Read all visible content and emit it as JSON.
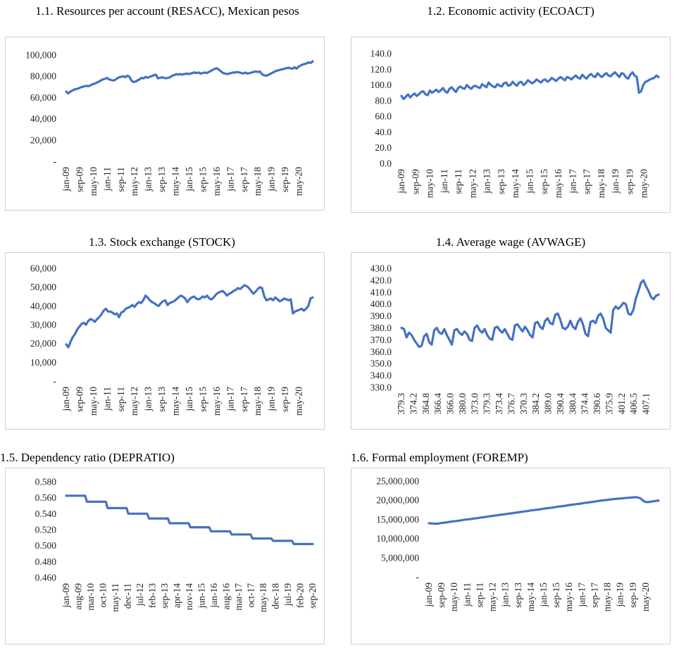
{
  "chart_data": [
    {
      "id": "c1",
      "type": "line",
      "title": "1.1. Resources per account (RESACC), Mexican pesos",
      "yticks": [
        "100,000",
        "80,000",
        "60,000",
        "40,000",
        "20,000",
        "-"
      ],
      "ylim": [
        0,
        100000
      ],
      "xticks": [
        "jan-09",
        "sep-09",
        "may-10",
        "jan-11",
        "sep-11",
        "may-12",
        "jan-13",
        "sep-13",
        "may-14",
        "jan-15",
        "sep-15",
        "may-16",
        "jan-17",
        "sep-17",
        "may-18",
        "jan-19",
        "sep-19",
        "may-20"
      ],
      "series": [
        {
          "name": "RESACC",
          "color": "#4472C4",
          "values": [
            65500,
            63800,
            65500,
            66500,
            67500,
            68000,
            68500,
            69500,
            70000,
            70500,
            71000,
            70500,
            71500,
            72500,
            73000,
            74000,
            75000,
            76000,
            77000,
            77500,
            78500,
            77000,
            76500,
            76000,
            76500,
            78000,
            79000,
            79500,
            80000,
            79000,
            80500,
            79500,
            76000,
            74500,
            75000,
            76000,
            77000,
            78500,
            78000,
            79500,
            78500,
            79500,
            80000,
            81000,
            81500,
            78000,
            78500,
            79000,
            78500,
            78000,
            78500,
            79000,
            80500,
            81000,
            82000,
            81500,
            82000,
            81500,
            82000,
            82500,
            82000,
            82500,
            83000,
            83500,
            83000,
            83500,
            82500,
            83000,
            83500,
            83000,
            84000,
            85000,
            86000,
            87000,
            87500,
            86000,
            84500,
            83000,
            82500,
            82000,
            82500,
            83000,
            83500,
            83500,
            84000,
            83500,
            83000,
            82500,
            83500,
            82500,
            83000,
            83500,
            84000,
            84500,
            84000,
            84500,
            82000,
            81000,
            80500,
            81000,
            82000,
            83000,
            84000,
            85000,
            85500,
            86000,
            86500,
            87000,
            87500,
            88000,
            87500,
            87000,
            88500,
            87000,
            89000,
            90000,
            91000,
            91500,
            92000,
            93000,
            92500,
            94000
          ]
        }
      ]
    },
    {
      "id": "c2",
      "type": "line",
      "title": "1.2. Economic activity (ECOACT)",
      "yticks": [
        "140.0",
        "120.0",
        "100.0",
        "80.0",
        "60.0",
        "40.0",
        "20.0",
        "0.0"
      ],
      "ylim": [
        0,
        140
      ],
      "xticks": [
        "jan-09",
        "sep-09",
        "may-10",
        "jan-11",
        "sep-11",
        "may-12",
        "jan-13",
        "sep-13",
        "may-14",
        "jan-15",
        "sep-15",
        "may-16",
        "jan-17",
        "sep-17",
        "may-18",
        "jan-19",
        "sep-19",
        "may-20"
      ],
      "series": [
        {
          "name": "ECOACT",
          "color": "#4472C4",
          "values": [
            86,
            82,
            85,
            88,
            84,
            87,
            89,
            86,
            88,
            91,
            92,
            88,
            87,
            93,
            90,
            92,
            94,
            91,
            93,
            96,
            92,
            90,
            95,
            97,
            94,
            91,
            96,
            98,
            96,
            95,
            100,
            97,
            95,
            98,
            99,
            97,
            96,
            101,
            99,
            97,
            103,
            100,
            98,
            97,
            101,
            99,
            98,
            102,
            103,
            99,
            100,
            104,
            101,
            99,
            103,
            104,
            100,
            102,
            106,
            104,
            102,
            104,
            107,
            105,
            103,
            106,
            107,
            104,
            106,
            109,
            107,
            105,
            108,
            110,
            108,
            106,
            110,
            109,
            107,
            110,
            112,
            109,
            108,
            113,
            110,
            108,
            112,
            114,
            111,
            110,
            115,
            112,
            110,
            113,
            115,
            112,
            111,
            114,
            116,
            113,
            110,
            115,
            114,
            110,
            108,
            113,
            116,
            112,
            110,
            90,
            92,
            100,
            104,
            105,
            107,
            108,
            109,
            112,
            110
          ]
        }
      ]
    },
    {
      "id": "c3",
      "type": "line",
      "title": "1.3. Stock exchange (STOCK)",
      "yticks": [
        "60,000",
        "50,000",
        "40,000",
        "30,000",
        "20,000",
        "10,000",
        "-"
      ],
      "ylim": [
        0,
        60000
      ],
      "xticks": [
        "jan-09",
        "sep-09",
        "may-10",
        "jan-11",
        "sep-11",
        "may-12",
        "jan-13",
        "sep-13",
        "may-14",
        "jan-15",
        "sep-15",
        "may-16",
        "jan-17",
        "sep-17",
        "may-18",
        "jan-19",
        "sep-19",
        "may-20"
      ],
      "series": [
        {
          "name": "STOCK",
          "color": "#4472C4",
          "values": [
            19500,
            18000,
            21000,
            23500,
            25000,
            27500,
            29000,
            30500,
            31000,
            30000,
            32000,
            33000,
            32500,
            31500,
            33000,
            34000,
            35500,
            37500,
            38500,
            37000,
            37000,
            36500,
            35500,
            36000,
            34000,
            36500,
            37000,
            38500,
            39000,
            39500,
            40500,
            39500,
            41000,
            42000,
            41500,
            43000,
            45500,
            44500,
            43000,
            42000,
            41500,
            40500,
            40000,
            41500,
            42500,
            43000,
            40500,
            41500,
            42000,
            42500,
            43500,
            44500,
            45500,
            45000,
            44000,
            42000,
            43500,
            44500,
            45000,
            44000,
            43500,
            44000,
            45000,
            44500,
            45500,
            44000,
            43500,
            44500,
            46000,
            47000,
            47500,
            48000,
            47000,
            45500,
            46500,
            47000,
            48000,
            48500,
            49500,
            49000,
            50000,
            51000,
            50500,
            49500,
            48000,
            46500,
            47500,
            49000,
            50000,
            49500,
            45000,
            43000,
            43500,
            44000,
            43000,
            44500,
            43500,
            42500,
            43000,
            44000,
            43500,
            43000,
            43500,
            36000,
            37000,
            37500,
            38000,
            38500,
            37500,
            38500,
            40000,
            44000,
            44500
          ]
        }
      ]
    },
    {
      "id": "c4",
      "type": "line",
      "title": "1.4. Average wage (AVWAGE)",
      "yticks": [
        "430.0",
        "420.0",
        "410.0",
        "400.0",
        "390.0",
        "380.0",
        "370.0",
        "360.0",
        "350.0",
        "340.0",
        "330.0"
      ],
      "ylim": [
        330,
        430
      ],
      "xticks": [
        "379.3",
        "374.2",
        "364.8",
        "366.4",
        "366.0",
        "380.0",
        "373.0",
        "379.3",
        "373.4",
        "376.7",
        "370.3",
        "384.2",
        "389.0",
        "390.4",
        "380.4",
        "374.4",
        "390.6",
        "375.9",
        "401.2",
        "406.5",
        "407.1"
      ],
      "series": [
        {
          "name": "AVWAGE",
          "color": "#4472C4",
          "values": [
            380,
            379,
            372,
            376,
            374,
            370,
            367,
            364,
            365,
            373,
            375,
            368,
            366,
            378,
            380,
            376,
            375,
            379,
            374,
            370,
            366,
            378,
            379,
            376,
            374,
            377,
            375,
            370,
            369,
            380,
            382,
            378,
            376,
            379,
            374,
            371,
            370,
            380,
            381,
            378,
            376,
            379,
            375,
            371,
            370,
            382,
            383,
            380,
            377,
            381,
            378,
            374,
            372,
            384,
            385,
            381,
            379,
            386,
            388,
            384,
            383,
            391,
            392,
            387,
            380,
            379,
            381,
            386,
            381,
            379,
            385,
            388,
            383,
            375,
            373,
            385,
            386,
            384,
            390,
            392,
            388,
            380,
            378,
            376,
            395,
            398,
            396,
            398,
            401,
            400,
            392,
            391,
            395,
            405,
            411,
            418,
            420,
            415,
            411,
            406,
            404,
            407,
            408
          ]
        }
      ]
    },
    {
      "id": "c5",
      "type": "line",
      "title": "1.5. Dependency ratio (DEPRATIO)",
      "yticks": [
        "0.580",
        "0.560",
        "0.540",
        "0.520",
        "0.500",
        "0.480",
        "0.460"
      ],
      "ylim": [
        0.46,
        0.58
      ],
      "xticks": [
        "jan-09",
        "aug-09",
        "mar-10",
        "oct-10",
        "may-11",
        "dec-11",
        "jul-12",
        "feb-13",
        "sep-13",
        "apr-14",
        "nov-14",
        "jun-15",
        "jan-16",
        "aug-16",
        "mar-17",
        "oct-17",
        "may-18",
        "dec-18",
        "jul-19",
        "feb-20",
        "sep-20"
      ],
      "series": [
        {
          "name": "DEPRATIO",
          "color": "#4472C4",
          "values": [
            0.5625,
            0.5625,
            0.5625,
            0.5625,
            0.5625,
            0.5625,
            0.5625,
            0.5625,
            0.5625,
            0.5625,
            0.5625,
            0.5625,
            0.555,
            0.555,
            0.555,
            0.555,
            0.555,
            0.555,
            0.555,
            0.555,
            0.555,
            0.555,
            0.555,
            0.555,
            0.547,
            0.547,
            0.547,
            0.547,
            0.547,
            0.547,
            0.547,
            0.547,
            0.547,
            0.547,
            0.547,
            0.547,
            0.54,
            0.54,
            0.54,
            0.54,
            0.54,
            0.54,
            0.54,
            0.54,
            0.54,
            0.54,
            0.54,
            0.54,
            0.534,
            0.534,
            0.534,
            0.534,
            0.534,
            0.534,
            0.534,
            0.534,
            0.534,
            0.534,
            0.534,
            0.534,
            0.528,
            0.528,
            0.528,
            0.528,
            0.528,
            0.528,
            0.528,
            0.528,
            0.528,
            0.528,
            0.528,
            0.528,
            0.523,
            0.523,
            0.523,
            0.523,
            0.523,
            0.523,
            0.523,
            0.523,
            0.523,
            0.523,
            0.523,
            0.523,
            0.518,
            0.518,
            0.518,
            0.518,
            0.518,
            0.518,
            0.518,
            0.518,
            0.518,
            0.518,
            0.518,
            0.518,
            0.514,
            0.514,
            0.514,
            0.514,
            0.514,
            0.514,
            0.514,
            0.514,
            0.514,
            0.514,
            0.514,
            0.514,
            0.509,
            0.509,
            0.509,
            0.509,
            0.509,
            0.509,
            0.509,
            0.509,
            0.509,
            0.509,
            0.509,
            0.509,
            0.506,
            0.506,
            0.506,
            0.506,
            0.506,
            0.506,
            0.506,
            0.506,
            0.506,
            0.506,
            0.506,
            0.506,
            0.502,
            0.502,
            0.502,
            0.502,
            0.502,
            0.502,
            0.502,
            0.502,
            0.502,
            0.502,
            0.502,
            0.502
          ]
        }
      ]
    },
    {
      "id": "c6",
      "type": "line",
      "title": "1.6. Formal employment (FOREMP)",
      "yticks": [
        "25,000,000",
        "20,000,000",
        "15,000,000",
        "10,000,000",
        "5,000,000",
        "-"
      ],
      "ylim": [
        0,
        25000000
      ],
      "xticks": [
        "jan-09",
        "sep-09",
        "may-10",
        "jan-11",
        "sep-11",
        "may-12",
        "jan-13",
        "sep-13",
        "may-14",
        "jan-15",
        "sep-15",
        "may-16",
        "jan-17",
        "sep-17",
        "may-18",
        "jan-19",
        "sep-19",
        "may-20"
      ],
      "series": [
        {
          "name": "FOREMP",
          "color": "#4472C4",
          "values": [
            14000000,
            13950000,
            13900000,
            13850000,
            13900000,
            14000000,
            14100000,
            14150000,
            14250000,
            14350000,
            14450000,
            14500000,
            14550000,
            14650000,
            14750000,
            14850000,
            14950000,
            15000000,
            15050000,
            15150000,
            15250000,
            15300000,
            15400000,
            15500000,
            15550000,
            15650000,
            15750000,
            15850000,
            15900000,
            16000000,
            16050000,
            16150000,
            16250000,
            16300000,
            16400000,
            16500000,
            16550000,
            16650000,
            16750000,
            16850000,
            16900000,
            17000000,
            17050000,
            17150000,
            17250000,
            17350000,
            17400000,
            17500000,
            17550000,
            17650000,
            17750000,
            17850000,
            17900000,
            18000000,
            18050000,
            18150000,
            18250000,
            18350000,
            18400000,
            18500000,
            18550000,
            18650000,
            18750000,
            18850000,
            18900000,
            19000000,
            19050000,
            19150000,
            19250000,
            19350000,
            19400000,
            19500000,
            19550000,
            19650000,
            19750000,
            19850000,
            19900000,
            20000000,
            20050000,
            20150000,
            20200000,
            20300000,
            20350000,
            20400000,
            20450000,
            20500000,
            20550000,
            20600000,
            20650000,
            20700000,
            20750000,
            20800000,
            20700000,
            20500000,
            20000000,
            19600000,
            19500000,
            19550000,
            19650000,
            19750000,
            19850000,
            19900000
          ]
        }
      ]
    }
  ]
}
